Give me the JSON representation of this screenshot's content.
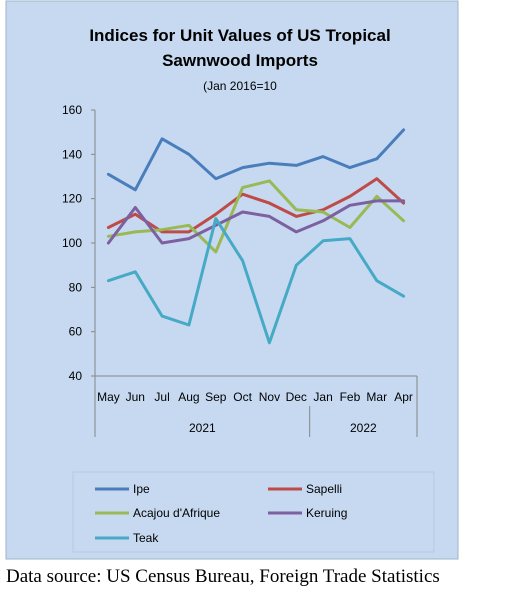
{
  "chart_data": {
    "type": "line",
    "title_lines": [
      "Indices for Unit Values of US Tropical",
      "Sawnwood Imports"
    ],
    "subtitle": "(Jan 2016=10",
    "categories": [
      "May",
      "Jun",
      "Jul",
      "Aug",
      "Sep",
      "Oct",
      "Nov",
      "Dec",
      "Jan",
      "Feb",
      "Mar",
      "Apr"
    ],
    "year_groups": [
      {
        "label": "2021",
        "start": 0,
        "end": 7
      },
      {
        "label": "2022",
        "start": 8,
        "end": 11
      }
    ],
    "ylim": [
      40,
      160
    ],
    "yticks": [
      40,
      60,
      80,
      100,
      120,
      140,
      160
    ],
    "x_points_per_category": 2,
    "legend_position": "bottom",
    "series": [
      {
        "name": "Ipe",
        "color": "#4a7ebb",
        "values": [
          131,
          124,
          147,
          140,
          129,
          134,
          136,
          135,
          139,
          134,
          138,
          151
        ]
      },
      {
        "name": "Sapelli",
        "color": "#be4b48",
        "values": [
          107,
          113,
          105,
          105,
          113,
          122,
          118,
          112,
          115,
          121,
          129,
          118
        ]
      },
      {
        "name": "Acajou d'Afrique",
        "color": "#98b954",
        "values": [
          103,
          105,
          106,
          108,
          96,
          125,
          128,
          115,
          114,
          107,
          121,
          110
        ]
      },
      {
        "name": "Keruing",
        "color": "#7d60a0",
        "values": [
          100,
          116,
          100,
          102,
          108,
          114,
          112,
          105,
          110,
          117,
          119,
          119
        ]
      },
      {
        "name": "Teak",
        "color": "#46aac5",
        "values": [
          83,
          87,
          67,
          63,
          111,
          92,
          55,
          90,
          101,
          102,
          83,
          76
        ]
      }
    ]
  },
  "caption": "Data source: US Census Bureau, Foreign Trade Statistics"
}
